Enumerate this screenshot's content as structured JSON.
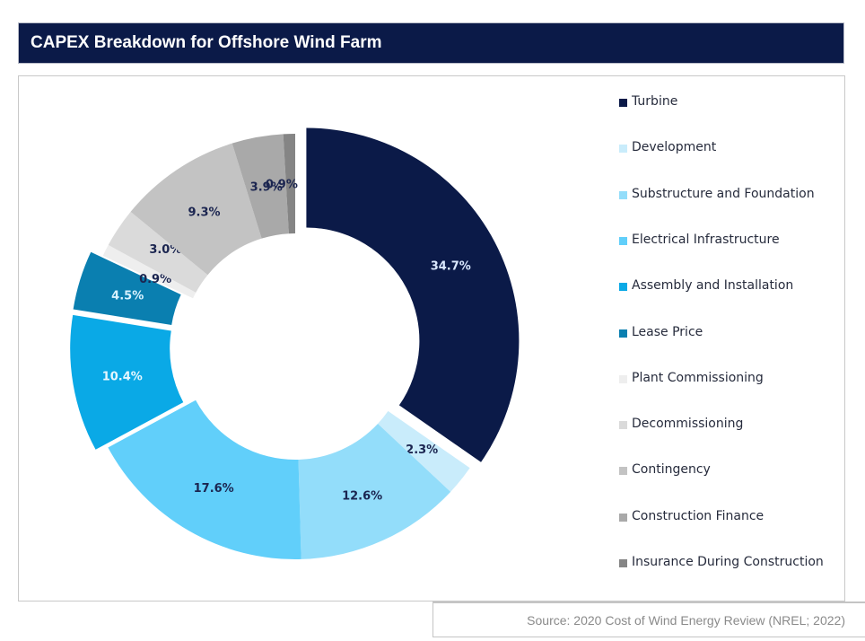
{
  "header": {
    "title": "CAPEX Breakdown for Offshore Wind Farm"
  },
  "source": "Source: 2020 Cost of Wind Energy Review (NREL; 2022)",
  "chart_data": {
    "type": "pie",
    "subtype": "donut",
    "title": "CAPEX Breakdown for Offshore Wind Farm",
    "legend_position": "right",
    "unit": "%",
    "categories": [
      "Turbine",
      "Development",
      "Substructure and Foundation",
      "Electrical Infrastructure",
      "Assembly and Installation",
      "Lease Price",
      "Plant Commissioning",
      "Decommissioning",
      "Contingency",
      "Construction Finance",
      "Insurance During Construction"
    ],
    "values": [
      34.7,
      2.3,
      12.6,
      17.6,
      10.4,
      4.5,
      0.9,
      3.0,
      9.3,
      3.9,
      0.9
    ],
    "labels": [
      "34.7%",
      "2.3%",
      "12.6%",
      "17.6%",
      "10.4%",
      "4.5%",
      "0.9%",
      "3.0%",
      "9.3%",
      "3.9%",
      "0.9%"
    ],
    "colors": [
      "#0b1a48",
      "#c9ecfb",
      "#93ddfa",
      "#61cffa",
      "#0aa9e6",
      "#0a7fb0",
      "#eeeeee",
      "#dadada",
      "#c3c3c3",
      "#a9a9a9",
      "#858585"
    ],
    "label_colors": [
      "#dbe9ff",
      "#1b2550",
      "#1b2550",
      "#1b2550",
      "#e6f7ff",
      "#d8f2ff",
      "#1b2550",
      "#1b2550",
      "#1b2550",
      "#1b2550",
      "#1b2550"
    ],
    "exploded": [
      "Turbine",
      "Assembly and Installation",
      "Lease Price"
    ]
  }
}
